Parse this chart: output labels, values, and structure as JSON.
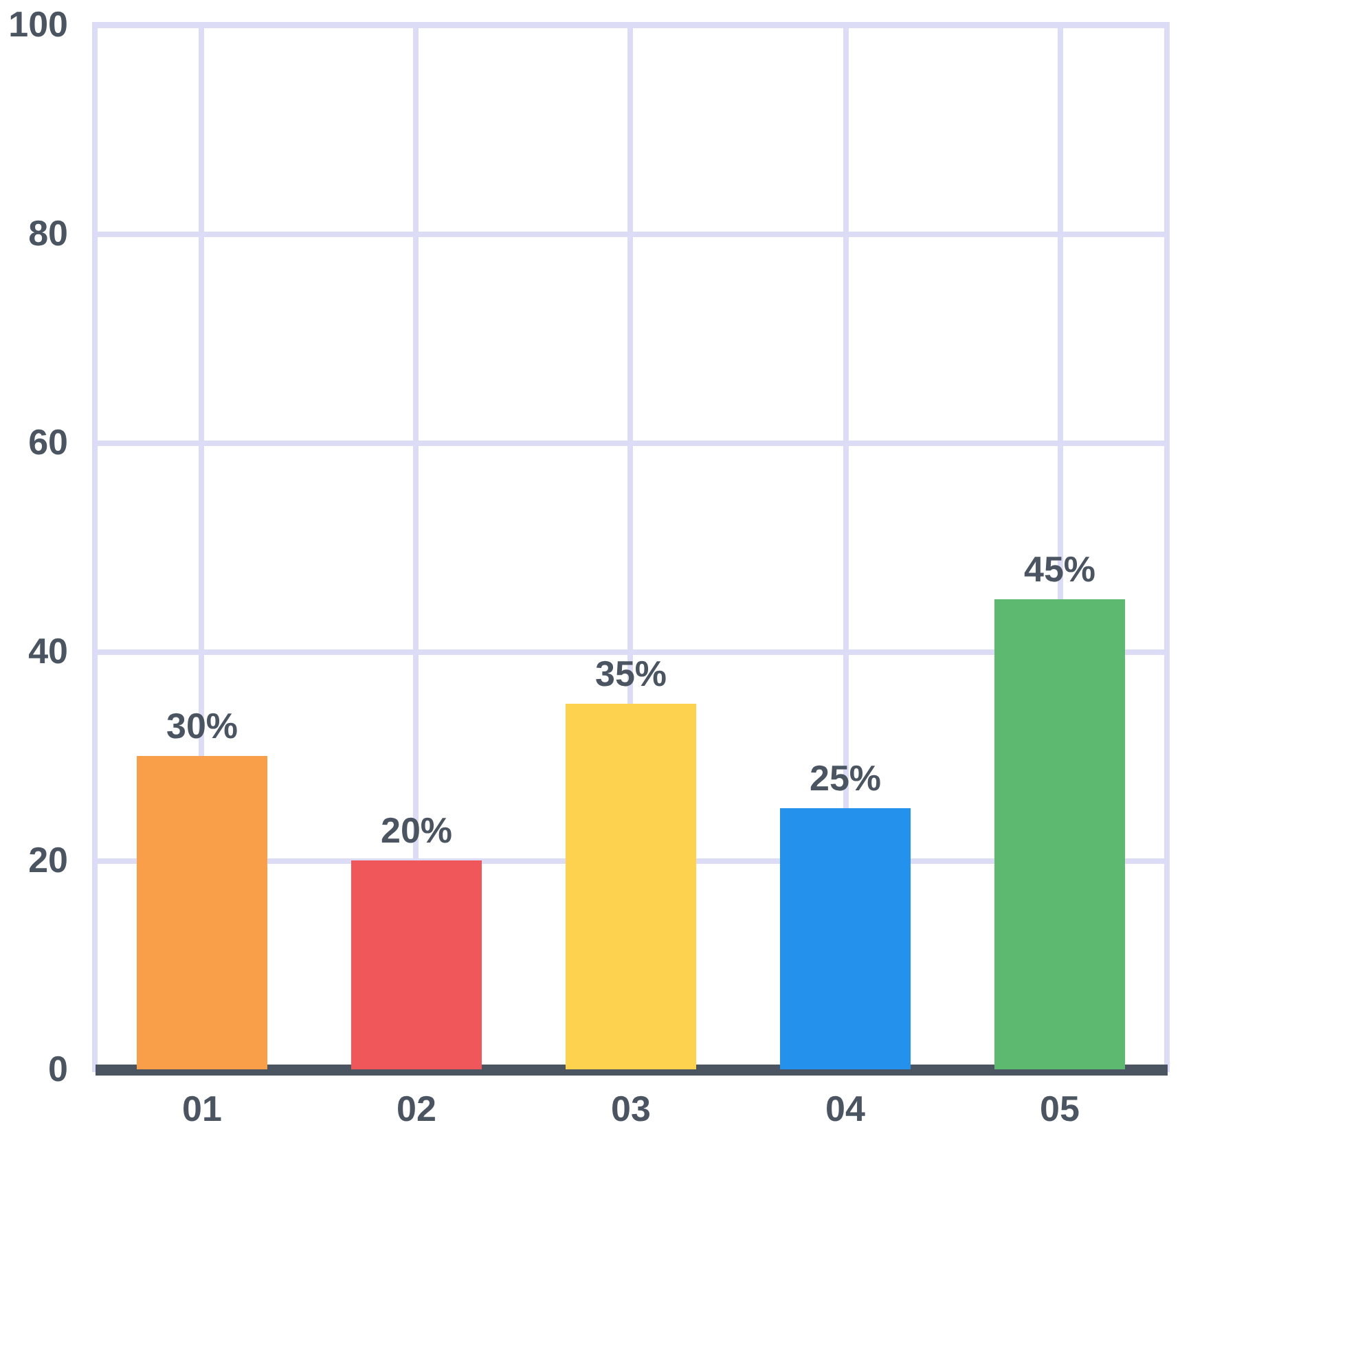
{
  "chart_data": {
    "type": "bar",
    "categories": [
      "01",
      "02",
      "03",
      "04",
      "05"
    ],
    "values": [
      30,
      20,
      35,
      25,
      45
    ],
    "colors": [
      "#f99f4a",
      "#f0575a",
      "#fcd24f",
      "#2492ec",
      "#5db870"
    ],
    "value_labels": [
      "30%",
      "20%",
      "35%",
      "25%",
      "45%"
    ],
    "ylim": [
      0,
      100
    ],
    "yticks": [
      0,
      20,
      40,
      60,
      80,
      100
    ],
    "grid": true
  }
}
